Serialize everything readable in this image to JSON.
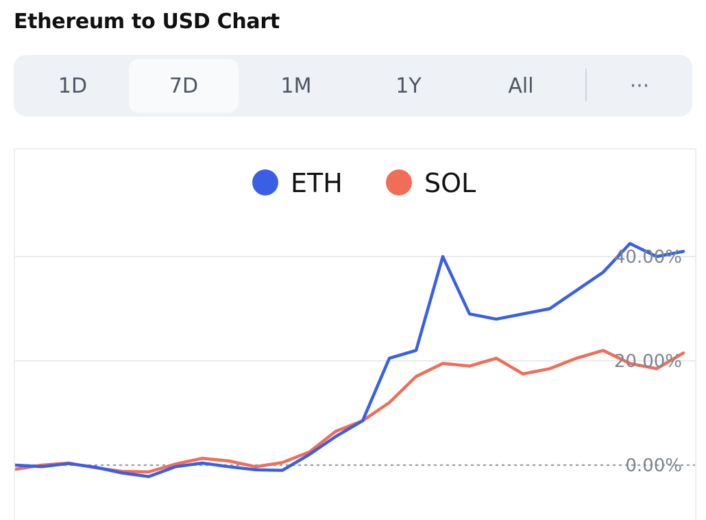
{
  "header": {
    "title": "Ethereum to USD Chart"
  },
  "tabs": [
    {
      "label": "1D",
      "active": false
    },
    {
      "label": "7D",
      "active": true
    },
    {
      "label": "1M",
      "active": false
    },
    {
      "label": "1Y",
      "active": false
    },
    {
      "label": "All",
      "active": false
    },
    {
      "label": "···",
      "active": false
    }
  ],
  "chart_data": {
    "type": "line",
    "title": "",
    "xlabel": "",
    "ylabel": "",
    "y_unit": "%",
    "ylim": [
      -3,
      45
    ],
    "yticks": [
      {
        "value": 0,
        "label": "0.00%"
      },
      {
        "value": 20,
        "label": "20.00%"
      },
      {
        "value": 40,
        "label": "40.00%"
      }
    ],
    "grid": "horizontal",
    "legend_position": "top-center",
    "x": [
      0,
      4,
      8,
      12,
      16,
      20,
      24,
      28,
      32,
      36,
      40,
      44,
      48,
      52,
      56,
      60,
      64,
      68,
      72,
      76,
      80,
      84,
      88,
      92,
      96,
      100
    ],
    "series": [
      {
        "name": "ETH",
        "color": "#3a5fe5",
        "values": [
          0,
          -0.3,
          0.3,
          -0.4,
          -1.5,
          -2.2,
          -0.3,
          0.4,
          -0.3,
          -0.9,
          -1.0,
          2.0,
          5.5,
          8.5,
          20.5,
          22.0,
          40.0,
          29.0,
          28.0,
          29.0,
          30.0,
          33.5,
          37.0,
          42.5,
          40.0,
          41.0
        ]
      },
      {
        "name": "SOL",
        "color": "#f06d57",
        "values": [
          -0.8,
          0,
          0.4,
          -0.5,
          -1.2,
          -1.3,
          0.2,
          1.3,
          0.8,
          -0.3,
          0.5,
          2.5,
          6.5,
          8.5,
          12.0,
          17.0,
          19.5,
          19.0,
          20.5,
          17.5,
          18.5,
          20.5,
          22.0,
          19.5,
          18.5,
          21.5
        ]
      }
    ]
  }
}
